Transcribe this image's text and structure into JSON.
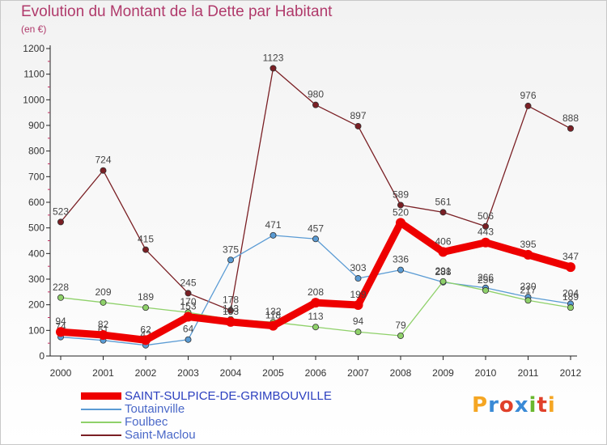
{
  "header": {
    "title": "Evolution du Montant de la Dette par Habitant",
    "subtitle": "(en €)"
  },
  "brand": {
    "text": "Proxiti",
    "colors": [
      "#f5a623",
      "#3a8ad6",
      "#e0402a",
      "#3a8ad6",
      "#6ab82e",
      "#e0402a",
      "#f5a623"
    ]
  },
  "chart_data": {
    "type": "line",
    "x": [
      2000,
      2001,
      2002,
      2003,
      2004,
      2005,
      2006,
      2007,
      2008,
      2009,
      2010,
      2011,
      2012
    ],
    "ylim": [
      0,
      1200
    ],
    "yticks": [
      0,
      100,
      200,
      300,
      400,
      500,
      600,
      700,
      800,
      900,
      1000,
      1100,
      1200
    ],
    "grid": false,
    "legend_position": "bottom-left",
    "series": [
      {
        "name": "Saint-Maclou",
        "color": "#7a1f24",
        "values": [
          523,
          724,
          415,
          245,
          178,
          1123,
          980,
          897,
          589,
          561,
          506,
          976,
          888
        ]
      },
      {
        "name": "Toutainville",
        "color": "#5a9bd4",
        "values": [
          74,
          61,
          42,
          64,
          375,
          471,
          457,
          303,
          336,
          288,
          266,
          230,
          204
        ]
      },
      {
        "name": "Foulbec",
        "color": "#8fd16a",
        "values": [
          228,
          209,
          189,
          170,
          143,
          132,
          113,
          94,
          79,
          291,
          256,
          217,
          189
        ]
      },
      {
        "name": "SAINT-SULPICE-DE-GRIMBOUVILLE",
        "color": "#ee0000",
        "values": [
          94,
          82,
          62,
          153,
          133,
          118,
          208,
          199,
          520,
          406,
          443,
          395,
          347
        ]
      }
    ],
    "legend_order": [
      "SAINT-SULPICE-DE-GRIMBOUVILLE",
      "Toutainville",
      "Foulbec",
      "Saint-Maclou"
    ]
  }
}
